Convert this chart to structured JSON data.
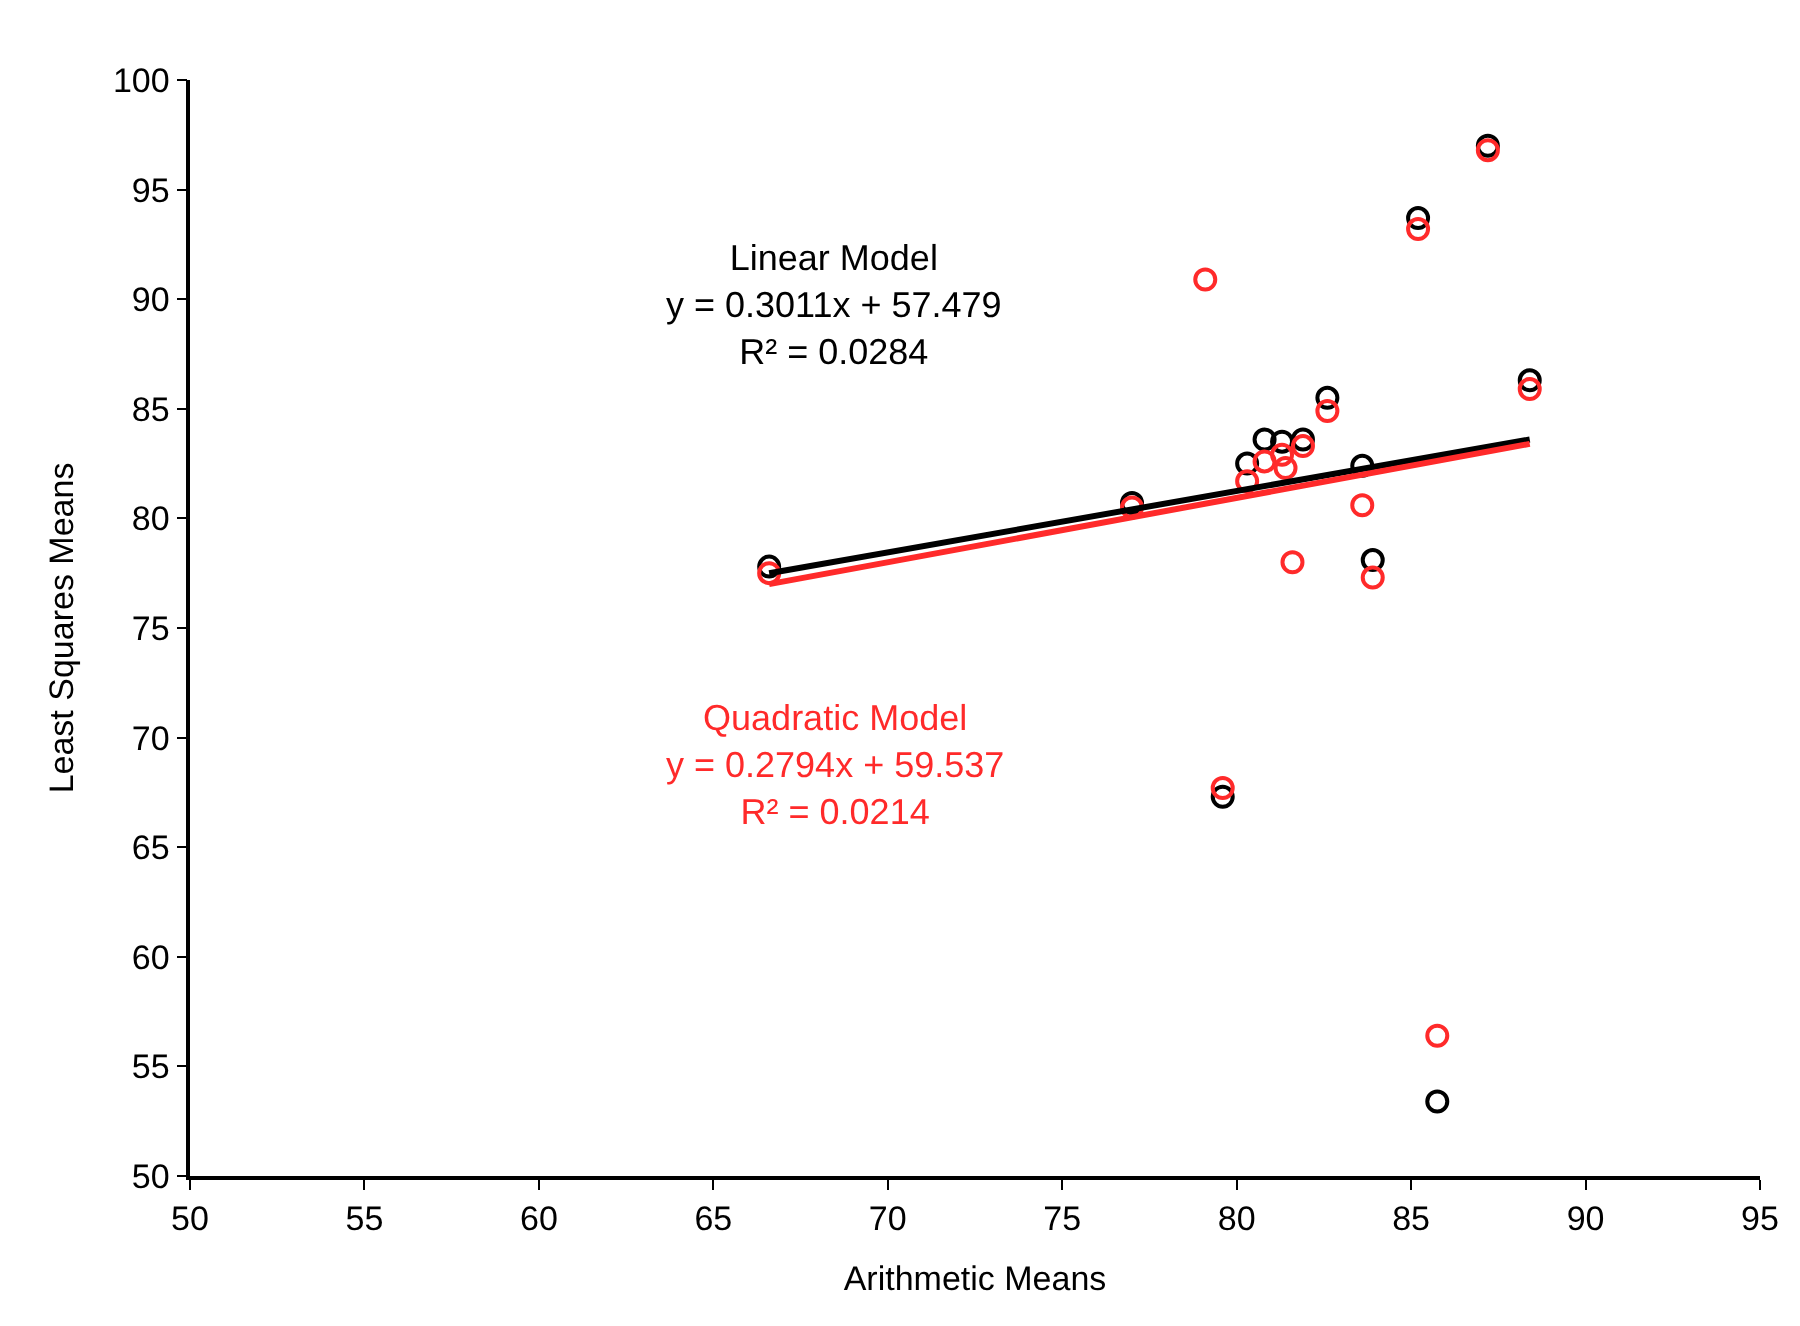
{
  "chart_data": {
    "type": "scatter",
    "xlabel": "Arithmetic Means",
    "ylabel": "Least Squares Means",
    "x": [
      66.6,
      77.0,
      79.1,
      79.6,
      80.3,
      80.8,
      81.3,
      81.4,
      81.6,
      81.9,
      82.6,
      83.6,
      83.9,
      85.75,
      85.2,
      87.2,
      88.4
    ],
    "xlim": [
      50,
      95
    ],
    "xticks": [
      50,
      55,
      60,
      65,
      70,
      75,
      80,
      85,
      90,
      95
    ],
    "ylim": [
      50,
      100
    ],
    "yticks": [
      50,
      55,
      60,
      65,
      70,
      75,
      80,
      85,
      90,
      95,
      100
    ],
    "legend": false,
    "marker": "circle",
    "series": [
      {
        "color": "#000000",
        "values": [
          77.8,
          80.7,
          null,
          67.3,
          82.5,
          83.6,
          83.5,
          null,
          null,
          83.6,
          85.5,
          82.4,
          78.1,
          53.4,
          93.7,
          97.0,
          86.3
        ]
      },
      {
        "color": "#ff2a2a",
        "values": [
          77.5,
          80.5,
          90.9,
          67.7,
          81.7,
          82.6,
          82.9,
          82.3,
          78.0,
          83.3,
          84.9,
          80.6,
          77.3,
          56.4,
          93.2,
          96.8,
          85.9
        ]
      },
      {
        "type": "line",
        "marker": "none",
        "color": "#000000",
        "values": [
          77.5,
          null,
          null,
          null,
          null,
          null,
          null,
          null,
          null,
          null,
          null,
          null,
          null,
          null,
          null,
          null,
          83.6
        ]
      },
      {
        "type": "line",
        "marker": "none",
        "color": "#ff2a2a",
        "values": [
          77.0,
          null,
          null,
          null,
          null,
          null,
          null,
          null,
          null,
          null,
          null,
          null,
          null,
          null,
          null,
          null,
          83.4
        ]
      }
    ],
    "annotations": [
      "Linear Model\ny = 0.3011x + 57.479\nR² = 0.0284",
      "Quadratic Model\ny = 0.2794x + 59.537\nR² = 0.0214"
    ]
  }
}
